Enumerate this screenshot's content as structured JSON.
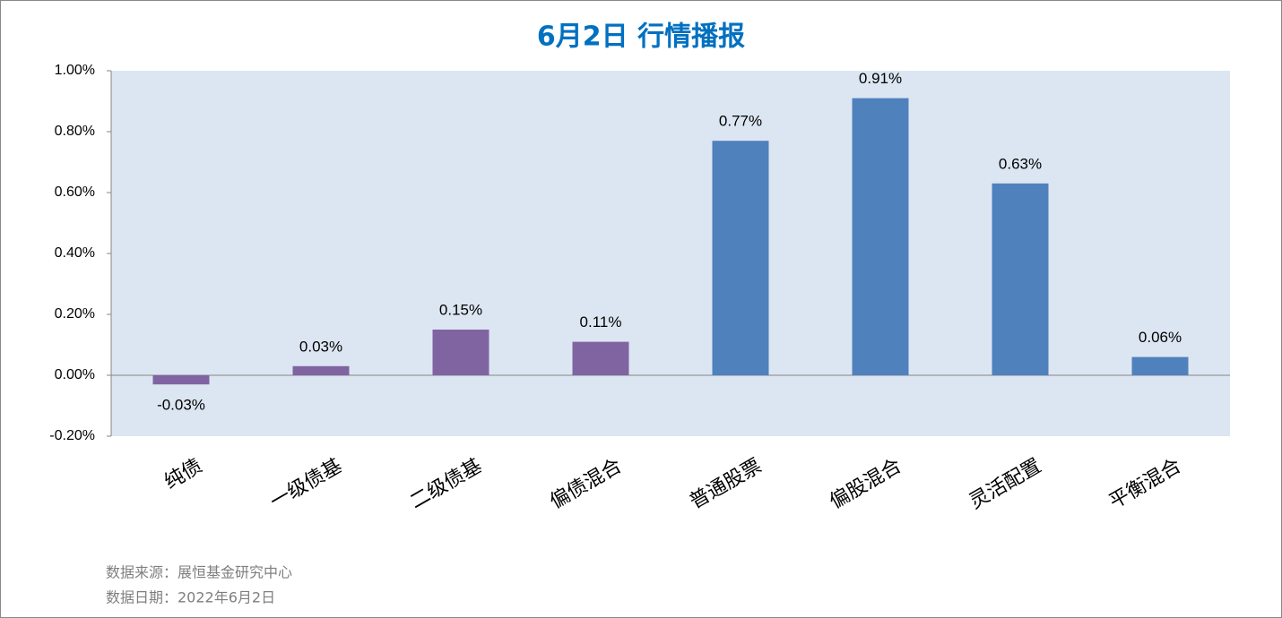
{
  "chart_data": {
    "type": "bar",
    "title": "6月2日  行情播报",
    "categories": [
      "纯债",
      "一级债基",
      "二级债基",
      "偏债混合",
      "普通股票",
      "偏股混合",
      "灵活配置",
      "平衡混合"
    ],
    "values": [
      -0.03,
      0.03,
      0.15,
      0.11,
      0.77,
      0.91,
      0.63,
      0.06
    ],
    "value_labels": [
      "-0.03%",
      "0.03%",
      "0.15%",
      "0.11%",
      "0.77%",
      "0.91%",
      "0.63%",
      "0.06%"
    ],
    "colors": [
      "#8064a2",
      "#8064a2",
      "#8064a2",
      "#8064a2",
      "#4f81bd",
      "#4f81bd",
      "#4f81bd",
      "#4f81bd"
    ],
    "ylim": [
      -0.2,
      1.0
    ],
    "yticks": [
      {
        "value": -0.2,
        "label": "-0.20%"
      },
      {
        "value": 0,
        "label": "0.00%"
      },
      {
        "value": 0.2,
        "label": "0.20%"
      },
      {
        "value": 0.4,
        "label": "0.40%"
      },
      {
        "value": 0.6,
        "label": "0.60%"
      },
      {
        "value": 0.8,
        "label": "0.80%"
      },
      {
        "value": 1.0,
        "label": "1.00%"
      }
    ],
    "grid": false,
    "source": "数据来源：展恒基金研究中心",
    "date_note": "数据日期：2022年6月2日"
  }
}
